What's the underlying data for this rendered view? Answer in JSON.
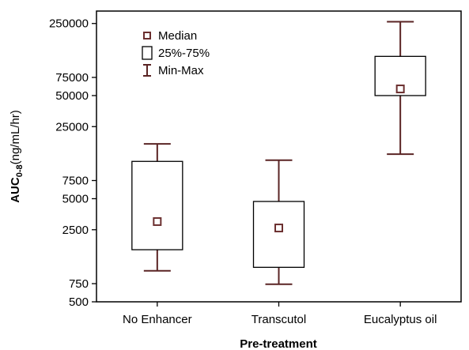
{
  "chart_data": {
    "type": "boxplot",
    "title": "",
    "xlabel": "Pre-treatment",
    "ylabel": {
      "main": "AUC",
      "subscript": "0-8",
      "unit": "(ng/mL/hr)"
    },
    "yscale": "log",
    "ylim": [
      500,
      330000
    ],
    "yticks": [
      {
        "value": 500,
        "label": "500"
      },
      {
        "value": 750,
        "label": "750"
      },
      {
        "value": 2500,
        "label": "2500"
      },
      {
        "value": 5000,
        "label": "5000"
      },
      {
        "value": 7500,
        "label": "7500"
      },
      {
        "value": 25000,
        "label": "25000"
      },
      {
        "value": 50000,
        "label": "50000"
      },
      {
        "value": 75000,
        "label": "75000"
      },
      {
        "value": 250000,
        "label": "250000"
      }
    ],
    "categories": [
      "No Enhancer",
      "Transcutol",
      "Eucalyptus oil"
    ],
    "boxes": [
      {
        "category": "No Enhancer",
        "min": 1000,
        "q1": 1600,
        "median": 3000,
        "q3": 11500,
        "max": 17000
      },
      {
        "category": "Transcutol",
        "min": 740,
        "q1": 1080,
        "median": 2600,
        "q3": 4700,
        "max": 11800
      },
      {
        "category": "Eucalyptus oil",
        "min": 13500,
        "q1": 50000,
        "median": 58000,
        "q3": 120000,
        "max": 260000
      }
    ],
    "legend": {
      "placement": "top-left",
      "entries": [
        {
          "symbol": "median-square",
          "label": "Median"
        },
        {
          "symbol": "box",
          "label": "25%-75%"
        },
        {
          "symbol": "whisker",
          "label": "Min-Max"
        }
      ]
    },
    "colors": {
      "median": "#6b2f2f",
      "whisker": "#5a2424",
      "box_stroke": "#000000",
      "axis": "#000000"
    }
  }
}
